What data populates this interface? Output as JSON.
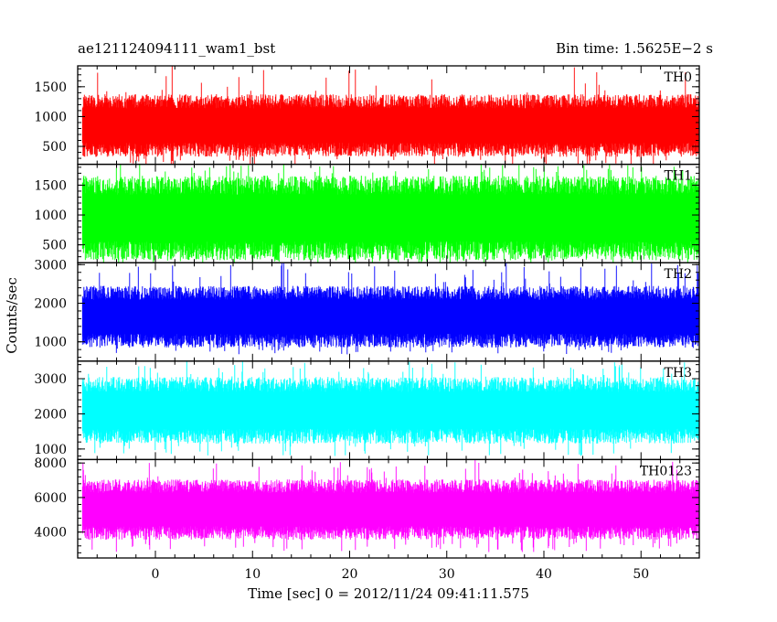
{
  "chart_data": {
    "type": "line",
    "title_left": "ae121124094111_wam1_bst",
    "title_right": "Bin time: 1.5625E−2 s",
    "xlabel": "Time [sec] 0 = 2012/11/24 09:41:11.575",
    "ylabel": "Counts/sec",
    "xlim": [
      -8,
      56
    ],
    "xticks": [
      0,
      10,
      20,
      30,
      40,
      50
    ],
    "grid": false,
    "panels": [
      {
        "name": "TH0",
        "color": "#ff0000",
        "ylim": [
          200,
          1850
        ],
        "yticks": [
          500,
          1000,
          1500
        ],
        "mean": 850,
        "low": 300,
        "high": 1350,
        "spike_max": 1850,
        "x_start": -7.5,
        "x_end": 56
      },
      {
        "name": "TH1",
        "color": "#00ff00",
        "ylim": [
          200,
          1850
        ],
        "yticks": [
          500,
          1000,
          1500
        ],
        "mean": 950,
        "low": 280,
        "high": 1700,
        "spike_max": 1850,
        "x_start": -7.5,
        "x_end": 56
      },
      {
        "name": "TH2",
        "color": "#0000ff",
        "ylim": [
          500,
          3050
        ],
        "yticks": [
          1000,
          2000,
          3000
        ],
        "mean": 1650,
        "low": 900,
        "high": 2500,
        "spike_max": 3050,
        "x_start": -7.5,
        "x_end": 56
      },
      {
        "name": "TH3",
        "color": "#00ffff",
        "ylim": [
          700,
          3500
        ],
        "yticks": [
          1000,
          2000,
          3000
        ],
        "mean": 2100,
        "low": 1100,
        "high": 3000,
        "spike_max": 3500,
        "x_start": -7.5,
        "x_end": 56
      },
      {
        "name": "TH0123",
        "color": "#ff00ff",
        "ylim": [
          2500,
          8200
        ],
        "yticks": [
          4000,
          6000,
          8000
        ],
        "mean": 5300,
        "low": 3400,
        "high": 6900,
        "spike_max": 8200,
        "x_start": -7.5,
        "x_end": 56
      }
    ]
  }
}
